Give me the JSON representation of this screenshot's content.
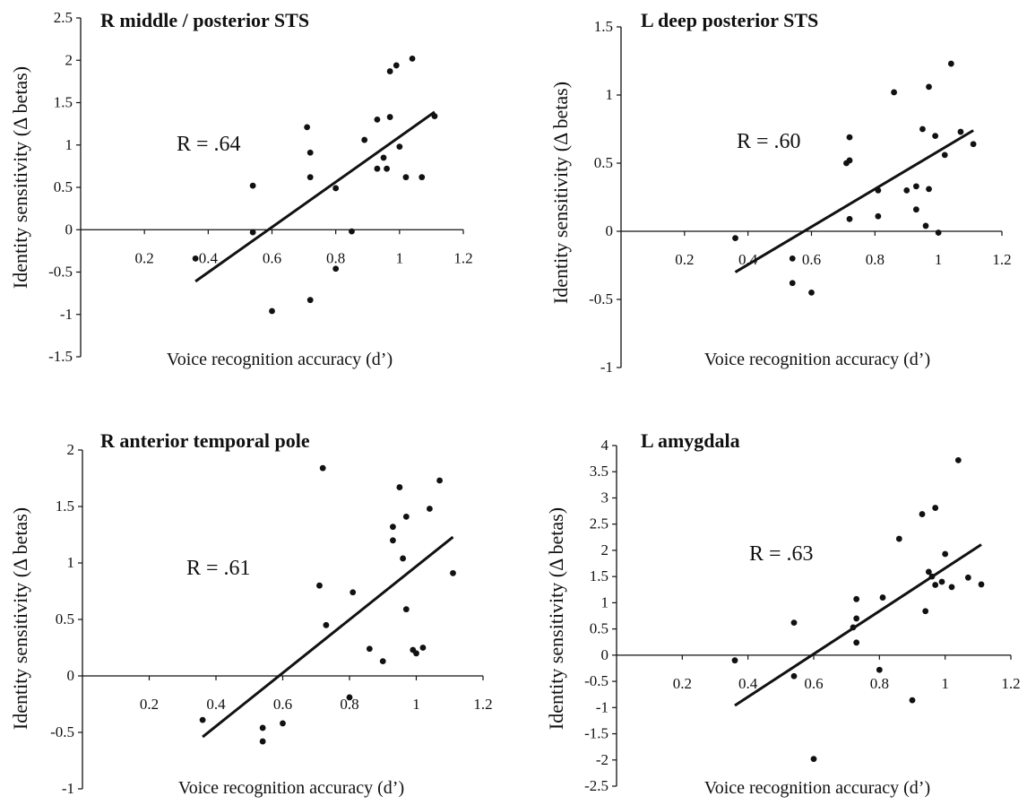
{
  "chart_data": [
    {
      "type": "scatter",
      "title": "R middle / posterior STS",
      "xlabel": "Voice recognition accuracy (d’)",
      "ylabel": "Identity sensitivity (Δ betas)",
      "annotation": "R = .64",
      "xticks": [
        "0.2",
        "0.4",
        "0.6",
        "0.8",
        "1",
        "1.2"
      ],
      "yticks": [
        "2.5",
        "2",
        "1.5",
        "1",
        "0.5",
        "0",
        "-0.5",
        "-1",
        "-1.5"
      ],
      "xlim": [
        0,
        1.2
      ],
      "ylim": [
        -1.5,
        2.5
      ],
      "points": [
        [
          0.36,
          -0.34
        ],
        [
          0.54,
          0.52
        ],
        [
          0.54,
          -0.03
        ],
        [
          0.6,
          -0.96
        ],
        [
          0.71,
          1.21
        ],
        [
          0.72,
          0.91
        ],
        [
          0.72,
          0.62
        ],
        [
          0.72,
          -0.83
        ],
        [
          0.8,
          0.49
        ],
        [
          0.8,
          -0.46
        ],
        [
          0.85,
          -0.02
        ],
        [
          0.89,
          1.06
        ],
        [
          0.93,
          1.3
        ],
        [
          0.93,
          0.72
        ],
        [
          0.95,
          0.85
        ],
        [
          0.96,
          0.72
        ],
        [
          0.97,
          1.87
        ],
        [
          0.97,
          1.33
        ],
        [
          0.99,
          1.94
        ],
        [
          1.0,
          0.98
        ],
        [
          1.02,
          0.62
        ],
        [
          1.04,
          2.02
        ],
        [
          1.07,
          0.62
        ],
        [
          1.11,
          1.34
        ]
      ],
      "fit_line": [
        [
          0.36,
          -0.61
        ],
        [
          1.11,
          1.39
        ]
      ],
      "grid": false
    },
    {
      "type": "scatter",
      "title": "L deep posterior STS",
      "xlabel": "Voice recognition accuracy (d’)",
      "ylabel": "Identity sensitivity (Δ betas)",
      "annotation": "R = .60",
      "xticks": [
        "0.2",
        "0.4",
        "0.6",
        "0.8",
        "1",
        "1.2"
      ],
      "yticks": [
        "1.5",
        "1",
        "0.5",
        "0",
        "-0.5",
        "-1"
      ],
      "xlim": [
        0,
        1.2
      ],
      "ylim": [
        -1,
        1.5
      ],
      "points": [
        [
          0.36,
          -0.05
        ],
        [
          0.54,
          -0.2
        ],
        [
          0.54,
          -0.38
        ],
        [
          0.6,
          -0.45
        ],
        [
          0.71,
          0.5
        ],
        [
          0.72,
          0.52
        ],
        [
          0.72,
          0.69
        ],
        [
          0.72,
          0.09
        ],
        [
          0.81,
          0.3
        ],
        [
          0.81,
          0.11
        ],
        [
          0.86,
          1.02
        ],
        [
          0.9,
          0.3
        ],
        [
          0.93,
          0.33
        ],
        [
          0.93,
          0.16
        ],
        [
          0.95,
          0.75
        ],
        [
          0.96,
          0.04
        ],
        [
          0.97,
          1.06
        ],
        [
          0.97,
          0.31
        ],
        [
          0.99,
          0.7
        ],
        [
          1.0,
          -0.01
        ],
        [
          1.02,
          0.56
        ],
        [
          1.04,
          1.23
        ],
        [
          1.07,
          0.73
        ],
        [
          1.11,
          0.64
        ]
      ],
      "fit_line": [
        [
          0.36,
          -0.3
        ],
        [
          1.11,
          0.74
        ]
      ],
      "grid": false
    },
    {
      "type": "scatter",
      "title": "R anterior temporal pole",
      "xlabel": "Voice recognition accuracy (d’)",
      "ylabel": "Identity sensitivity (Δ betas)",
      "annotation": "R = .61",
      "xticks": [
        "0.2",
        "0.4",
        "0.6",
        "0.8",
        "1",
        "1.2"
      ],
      "yticks": [
        "2",
        "1.5",
        "1",
        "0.5",
        "0",
        "-0.5",
        "-1"
      ],
      "xlim": [
        0,
        1.2
      ],
      "ylim": [
        -1,
        2
      ],
      "points": [
        [
          0.36,
          -0.39
        ],
        [
          0.54,
          -0.46
        ],
        [
          0.54,
          -0.58
        ],
        [
          0.6,
          -0.42
        ],
        [
          0.71,
          0.8
        ],
        [
          0.72,
          1.84
        ],
        [
          0.73,
          0.45
        ],
        [
          0.8,
          -0.19
        ],
        [
          0.81,
          0.74
        ],
        [
          0.86,
          0.24
        ],
        [
          0.9,
          0.13
        ],
        [
          0.93,
          1.32
        ],
        [
          0.93,
          1.2
        ],
        [
          0.95,
          1.67
        ],
        [
          0.96,
          1.04
        ],
        [
          0.97,
          1.41
        ],
        [
          0.97,
          0.59
        ],
        [
          0.99,
          0.23
        ],
        [
          1.0,
          0.2
        ],
        [
          1.02,
          0.25
        ],
        [
          1.04,
          1.48
        ],
        [
          1.07,
          1.73
        ],
        [
          1.11,
          0.91
        ]
      ],
      "fit_line": [
        [
          0.36,
          -0.54
        ],
        [
          1.11,
          1.23
        ]
      ],
      "grid": false
    },
    {
      "type": "scatter",
      "title": "L amygdala",
      "xlabel": "Voice recognition accuracy (d’)",
      "ylabel": "Identity sensitivity (Δ betas)",
      "annotation": "R = .63",
      "xticks": [
        "0.2",
        "0.4",
        "0.6",
        "0.8",
        "1",
        "1.2"
      ],
      "yticks": [
        "4",
        "3.5",
        "3",
        "2.5",
        "2",
        "1.5",
        "1",
        "0.5",
        "0",
        "-0.5",
        "-1",
        "-1.5",
        "-2",
        "-2.5"
      ],
      "xlim": [
        0,
        1.2
      ],
      "ylim": [
        -2.5,
        4
      ],
      "points": [
        [
          0.36,
          -0.1
        ],
        [
          0.54,
          0.62
        ],
        [
          0.54,
          -0.4
        ],
        [
          0.6,
          -1.98
        ],
        [
          0.72,
          0.53
        ],
        [
          0.73,
          1.07
        ],
        [
          0.73,
          0.7
        ],
        [
          0.73,
          0.24
        ],
        [
          0.81,
          1.1
        ],
        [
          0.8,
          -0.28
        ],
        [
          0.86,
          2.22
        ],
        [
          0.9,
          -0.86
        ],
        [
          0.93,
          2.69
        ],
        [
          0.94,
          0.84
        ],
        [
          0.95,
          1.59
        ],
        [
          0.96,
          1.5
        ],
        [
          0.97,
          2.81
        ],
        [
          0.97,
          1.34
        ],
        [
          0.99,
          1.4
        ],
        [
          1.0,
          1.93
        ],
        [
          1.02,
          1.3
        ],
        [
          1.04,
          3.72
        ],
        [
          1.07,
          1.48
        ],
        [
          1.11,
          1.35
        ]
      ],
      "fit_line": [
        [
          0.36,
          -0.96
        ],
        [
          1.11,
          2.11
        ]
      ],
      "grid": false
    }
  ]
}
